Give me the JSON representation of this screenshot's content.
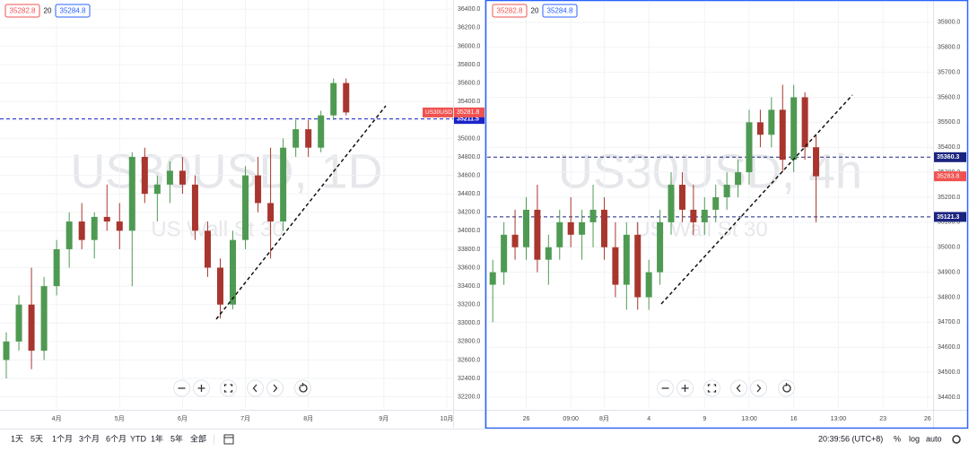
{
  "chart_data": [
    {
      "type": "candlestick",
      "symbol": "US30USD",
      "watermark": "US30USD, 1D",
      "watermark_sub": "US Wall St 30",
      "bid": 35282.8,
      "spread": 20,
      "ask": 35284.8,
      "categories": [
        null,
        null,
        null,
        null,
        "4月",
        null,
        null,
        null,
        null,
        "5月",
        null,
        null,
        null,
        null,
        "6月",
        null,
        null,
        null,
        null,
        "7月",
        null,
        null,
        null,
        null,
        "8月",
        null,
        null,
        null,
        null,
        null,
        "9月",
        null,
        null,
        null,
        null,
        "10月"
      ],
      "open": [
        32600,
        32800,
        33200,
        32700,
        33400,
        33800,
        34100,
        33900,
        34150,
        34100,
        34000,
        34800,
        34400,
        34500,
        34650,
        34500,
        34000,
        33600,
        33200,
        33900,
        34600,
        34300,
        34100,
        34900,
        35100,
        34900,
        35250,
        35600,
        null,
        null,
        null,
        null,
        null,
        null,
        null,
        null
      ],
      "high": [
        32900,
        33300,
        33600,
        33500,
        33900,
        34200,
        34300,
        34200,
        34500,
        34300,
        34850,
        34900,
        34600,
        34750,
        34800,
        34600,
        34100,
        33700,
        34000,
        34700,
        34800,
        34900,
        35000,
        35200,
        35200,
        35300,
        35650,
        35650,
        null,
        null,
        null,
        null,
        null,
        null,
        null,
        null
      ],
      "low": [
        32400,
        32700,
        32500,
        32600,
        33300,
        33600,
        33800,
        33700,
        34000,
        33800,
        33400,
        34300,
        34100,
        34300,
        34400,
        33900,
        33500,
        33050,
        33150,
        33800,
        34200,
        33700,
        34000,
        34800,
        34800,
        34850,
        35200,
        35250,
        null,
        null,
        null,
        null,
        null,
        null,
        null,
        null
      ],
      "close": [
        32800,
        33200,
        32700,
        33400,
        33800,
        34100,
        33900,
        34150,
        34100,
        34000,
        34800,
        34400,
        34500,
        34650,
        34500,
        34000,
        33600,
        33200,
        33900,
        34600,
        34300,
        34100,
        34900,
        35100,
        34900,
        35250,
        35600,
        35281.8,
        null,
        null,
        null,
        null,
        null,
        null,
        null,
        null
      ],
      "up_color": "#4f9a52",
      "down_color": "#a8362e",
      "ylim": [
        32080,
        36500
      ],
      "yticks": [
        {
          "value": 32200,
          "label": "32200.0"
        },
        {
          "value": 32400,
          "label": "32400.0"
        },
        {
          "value": 32600,
          "label": "32600.0"
        },
        {
          "value": 32800,
          "label": "32800.0"
        },
        {
          "value": 33000,
          "label": "33000.0"
        },
        {
          "value": 33200,
          "label": "33200.0"
        },
        {
          "value": 33400,
          "label": "33400.0"
        },
        {
          "value": 33600,
          "label": "33600.0"
        },
        {
          "value": 33800,
          "label": "33800.0"
        },
        {
          "value": 34000,
          "label": "34000.0"
        },
        {
          "value": 34200,
          "label": "34200.0"
        },
        {
          "value": 34400,
          "label": "34400.0"
        },
        {
          "value": 34600,
          "label": "34600.0"
        },
        {
          "value": 34800,
          "label": "34800.0"
        },
        {
          "value": 35000,
          "label": "35000.0"
        },
        {
          "value": 35200,
          "label": "35200.0"
        },
        {
          "value": 35400,
          "label": "35400.0"
        },
        {
          "value": 35600,
          "label": "35600.0"
        },
        {
          "value": 35800,
          "label": "35800.0"
        },
        {
          "value": 36000,
          "label": "36000.0"
        },
        {
          "value": 36200,
          "label": "36200.0"
        },
        {
          "value": 36400,
          "label": "36400.0"
        }
      ],
      "hlines": [
        35211.5
      ],
      "hline_color": "#1a23c8",
      "grid": true
    },
    {
      "type": "candlestick",
      "watermark": "US30USD, 4h",
      "watermark_sub": "US Wall St 30",
      "bid": 35282.8,
      "spread": 20,
      "ask": 35284.8,
      "categories": [
        null,
        null,
        null,
        "26",
        null,
        null,
        null,
        "09:00",
        null,
        null,
        "8月",
        null,
        null,
        null,
        "4",
        null,
        null,
        null,
        null,
        "9",
        null,
        null,
        null,
        "13:00",
        null,
        null,
        null,
        "16",
        null,
        null,
        null,
        "13:00",
        null,
        null,
        null,
        "23",
        null,
        null,
        null,
        "26"
      ],
      "open": [
        34850,
        34900,
        35050,
        35000,
        35150,
        34950,
        35000,
        35100,
        35050,
        35100,
        35150,
        35000,
        34850,
        35050,
        34800,
        34900,
        35100,
        35250,
        35150,
        35100,
        35150,
        35200,
        35250,
        35300,
        35500,
        35450,
        35550,
        35350,
        35600,
        35400,
        null,
        null,
        null,
        null,
        null,
        null,
        null,
        null,
        null,
        null
      ],
      "high": [
        34950,
        35100,
        35150,
        35200,
        35250,
        35050,
        35150,
        35200,
        35150,
        35250,
        35200,
        35100,
        35100,
        35100,
        34950,
        35150,
        35300,
        35300,
        35250,
        35200,
        35250,
        35300,
        35350,
        35550,
        35550,
        35600,
        35650,
        35650,
        35620,
        35450,
        null,
        null,
        null,
        null,
        null,
        null,
        null,
        null,
        null,
        null
      ],
      "low": [
        34700,
        34850,
        34950,
        34950,
        34900,
        34850,
        34950,
        35000,
        34950,
        35000,
        34950,
        34800,
        34750,
        34750,
        34750,
        34850,
        35050,
        35100,
        35050,
        35050,
        35100,
        35150,
        35200,
        35250,
        35400,
        35400,
        35300,
        35300,
        35350,
        35100,
        null,
        null,
        null,
        null,
        null,
        null,
        null,
        null,
        null,
        null
      ],
      "close": [
        34900,
        35050,
        35000,
        35150,
        34950,
        35000,
        35100,
        35050,
        35100,
        35150,
        35000,
        34850,
        35050,
        34800,
        34900,
        35100,
        35250,
        35150,
        35100,
        35150,
        35200,
        35250,
        35300,
        35500,
        35450,
        35550,
        35350,
        35600,
        35400,
        35283.8,
        null,
        null,
        null,
        null,
        null,
        null,
        null,
        null,
        null,
        null
      ],
      "up_color": "#4f9a52",
      "down_color": "#a8362e",
      "ylim": [
        34357,
        35982
      ],
      "yticks": [
        {
          "value": 34400,
          "label": "34400.0"
        },
        {
          "value": 34500,
          "label": "34500.0"
        },
        {
          "value": 34600,
          "label": "34600.0"
        },
        {
          "value": 34700,
          "label": "34700.0"
        },
        {
          "value": 34800,
          "label": "34800.0"
        },
        {
          "value": 34900,
          "label": "34900.0"
        },
        {
          "value": 35000,
          "label": "35000.0"
        },
        {
          "value": 35100,
          "label": "35100.0"
        },
        {
          "value": 35200,
          "label": "35200.0"
        },
        {
          "value": 35300,
          "label": "35300.0"
        },
        {
          "value": 35400,
          "label": "35400.0"
        },
        {
          "value": 35500,
          "label": "35500.0"
        },
        {
          "value": 35600,
          "label": "35600.0"
        },
        {
          "value": 35700,
          "label": "35700.0"
        },
        {
          "value": 35800,
          "label": "35800.0"
        },
        {
          "value": 35900,
          "label": "35900.0"
        }
      ],
      "hlines": [
        35360.3,
        35121.3
      ],
      "hline_color": "#1a237e",
      "grid": true
    }
  ],
  "toolbar": {
    "ranges": [
      "1天",
      "5天",
      "1个月",
      "3个月",
      "6个月",
      "YTD",
      "1年",
      "5年",
      "全部"
    ],
    "clock": "20:39:56 (UTC+8)",
    "percent": "%",
    "log": "log",
    "auto": "auto"
  }
}
